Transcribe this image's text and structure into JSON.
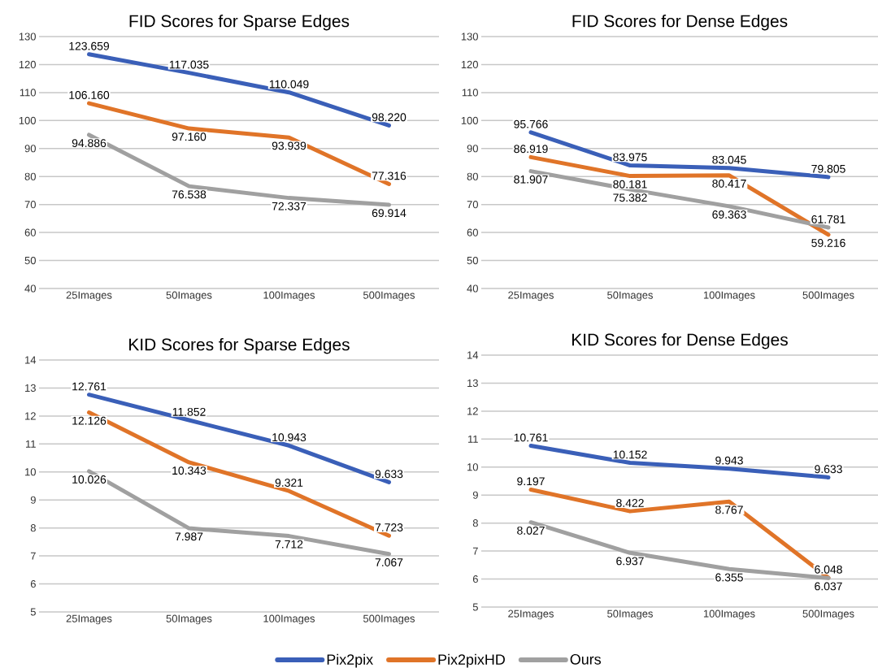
{
  "chart_data": [
    {
      "type": "line",
      "title": "FID Scores for Sparse Edges",
      "categories": [
        "25Images",
        "50Images",
        "100Images",
        "500Images"
      ],
      "ylim": [
        40,
        130
      ],
      "yticks": [
        40,
        50,
        60,
        70,
        80,
        90,
        100,
        110,
        120,
        130
      ],
      "grid": "y",
      "legend": false,
      "series": [
        {
          "color": "#3a5fb8",
          "values": [
            123.659,
            117.035,
            110.049,
            98.22
          ],
          "value_labels": [
            "123.659",
            "117.035",
            "110.049",
            "98.220"
          ]
        },
        {
          "color": "#e07428",
          "values": [
            106.16,
            97.16,
            93.939,
            77.316
          ],
          "value_labels": [
            "106.160",
            "97.160",
            "93.939",
            "77.316"
          ]
        },
        {
          "color": "#a0a0a0",
          "values": [
            94.886,
            76.538,
            72.337,
            69.914
          ],
          "value_labels": [
            "94.886",
            "76.538",
            "72.337",
            "69.914"
          ]
        }
      ]
    },
    {
      "type": "line",
      "title": "FID Scores for Dense Edges",
      "categories": [
        "25Images",
        "50Images",
        "100Images",
        "500Images"
      ],
      "ylim": [
        40,
        130
      ],
      "yticks": [
        40,
        50,
        60,
        70,
        80,
        90,
        100,
        110,
        120,
        130
      ],
      "grid": "y",
      "legend": false,
      "series": [
        {
          "color": "#3a5fb8",
          "values": [
            95.766,
            83.975,
            83.045,
            79.805
          ],
          "value_labels": [
            "95.766",
            "83.975",
            "83.045",
            "79.805"
          ]
        },
        {
          "color": "#e07428",
          "values": [
            86.919,
            80.181,
            80.417,
            59.216
          ],
          "value_labels": [
            "86.919",
            "80.181",
            "80.417",
            "59.216"
          ]
        },
        {
          "color": "#a0a0a0",
          "values": [
            81.907,
            75.382,
            69.363,
            61.781
          ],
          "value_labels": [
            "81.907",
            "75.382",
            "69.363",
            "61.781"
          ]
        }
      ]
    },
    {
      "type": "line",
      "title": "KID Scores for Sparse Edges",
      "categories": [
        "25Images",
        "50Images",
        "100Images",
        "500Images"
      ],
      "ylim": [
        5,
        14
      ],
      "yticks": [
        5,
        6,
        7,
        8,
        9,
        10,
        11,
        12,
        13,
        14
      ],
      "grid": "y",
      "legend": false,
      "series": [
        {
          "color": "#3a5fb8",
          "values": [
            12.761,
            11.852,
            10.943,
            9.633
          ],
          "value_labels": [
            "12.761",
            "11.852",
            "10.943",
            "9.633"
          ]
        },
        {
          "color": "#e07428",
          "values": [
            12.126,
            10.343,
            9.321,
            7.723
          ],
          "value_labels": [
            "12.126",
            "10.343",
            "9.321",
            "7.723"
          ]
        },
        {
          "color": "#a0a0a0",
          "values": [
            10.026,
            7.987,
            7.712,
            7.067
          ],
          "value_labels": [
            "10.026",
            "7.987",
            "7.712",
            "7.067"
          ]
        }
      ]
    },
    {
      "type": "line",
      "title": "KID Scores for Dense Edges",
      "categories": [
        "25Images",
        "50Images",
        "100Images",
        "500Images"
      ],
      "ylim": [
        5,
        14
      ],
      "yticks": [
        5,
        6,
        7,
        8,
        9,
        10,
        11,
        12,
        13,
        14
      ],
      "grid": "y",
      "legend": "bottom",
      "series": [
        {
          "name": "Pix2pix",
          "color": "#3a5fb8",
          "values": [
            10.761,
            10.152,
            9.943,
            9.633
          ],
          "value_labels": [
            "10.761",
            "10.152",
            "9.943",
            "9.633"
          ]
        },
        {
          "name": "Pix2pixHD",
          "color": "#e07428",
          "values": [
            9.197,
            8.422,
            8.767,
            6.048
          ],
          "value_labels": [
            "9.197",
            "8.422",
            "8.767",
            "6.048"
          ]
        },
        {
          "name": "Ours",
          "color": "#a0a0a0",
          "values": [
            8.027,
            6.937,
            6.355,
            6.037
          ],
          "value_labels": [
            "8.027",
            "6.937",
            "6.355",
            "6.037"
          ]
        }
      ]
    }
  ]
}
